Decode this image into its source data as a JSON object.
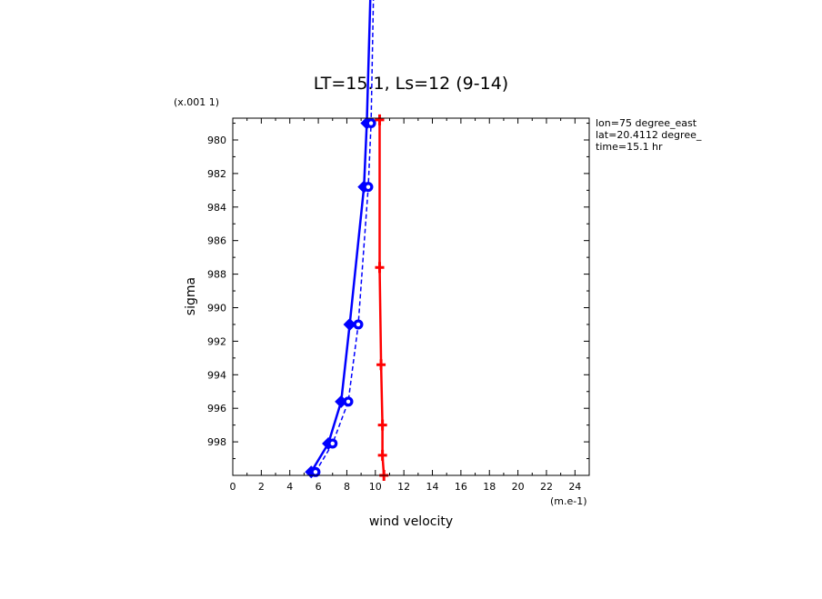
{
  "chart_data": {
    "type": "line",
    "title": "LT=15.1, Ls=12 (9-14)",
    "xlabel": "wind velocity",
    "ylabel": "sigma",
    "x_unit_label": "(m.e-1)",
    "y_scale_label": "(x.001 1)",
    "xlim": [
      0,
      25
    ],
    "ylim": [
      1000,
      978.7
    ],
    "x_ticks": [
      0,
      2,
      4,
      6,
      8,
      10,
      12,
      14,
      16,
      18,
      20,
      22,
      24
    ],
    "y_ticks": [
      980,
      982,
      984,
      986,
      988,
      990,
      992,
      994,
      996,
      998
    ],
    "info_lines": [
      "lon=75 degree_east",
      "lat=20.4112 degree_",
      "time=15.1 hr"
    ],
    "series": [
      {
        "style": "blue-solid-diamond",
        "color": "#0000ff",
        "dash": false,
        "marker": "diamond",
        "points": [
          [
            5.5,
            999.8
          ],
          [
            6.7,
            998.1
          ],
          [
            7.6,
            995.6
          ],
          [
            8.2,
            991.0
          ],
          [
            9.2,
            982.8
          ],
          [
            9.4,
            979.0
          ],
          [
            9.7,
            970.0
          ]
        ]
      },
      {
        "style": "blue-dashed-circle",
        "color": "#0000ff",
        "dash": true,
        "marker": "circle",
        "points": [
          [
            5.8,
            999.8
          ],
          [
            7.0,
            998.1
          ],
          [
            8.1,
            995.6
          ],
          [
            8.8,
            991.0
          ],
          [
            9.5,
            982.8
          ],
          [
            9.7,
            979.0
          ],
          [
            9.9,
            970.0
          ]
        ]
      },
      {
        "style": "red-solid-cross",
        "color": "#ff0000",
        "dash": false,
        "marker": "cross",
        "points": [
          [
            10.3,
            978.8
          ],
          [
            10.3,
            987.6
          ],
          [
            10.4,
            993.4
          ],
          [
            10.5,
            997.0
          ],
          [
            10.5,
            998.8
          ],
          [
            10.6,
            1000.0
          ]
        ]
      }
    ]
  }
}
